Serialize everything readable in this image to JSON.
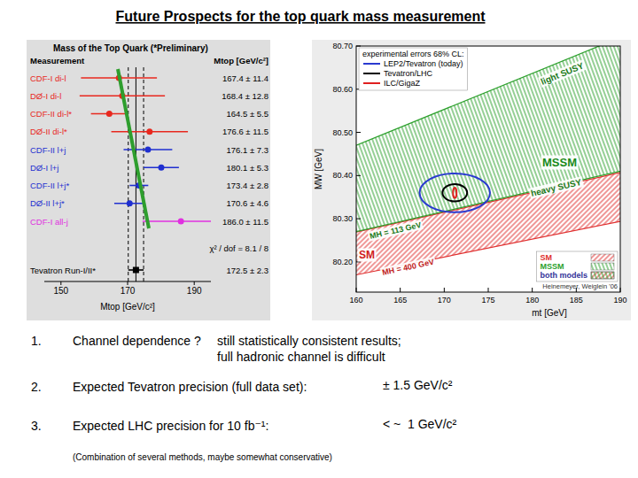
{
  "title": "Future Prospects for the top quark mass measurement",
  "chart_data": [
    {
      "type": "errorbar",
      "orientation": "horizontal",
      "title": "Mass of the Top Quark (*Preliminary)",
      "headers": [
        "Measurement",
        "Mtop [GeV/c²]"
      ],
      "categories": [
        "CDF-I di-l",
        "DØ-I di-l",
        "CDF-II di-l*",
        "DØ-II di-l*",
        "CDF-II l+j",
        "DØ-I l+j",
        "CDF-II l+j*",
        "DØ-II l+j*",
        "CDF-I all-j"
      ],
      "values": [
        167.4,
        168.4,
        164.5,
        176.6,
        176.1,
        180.1,
        173.4,
        170.6,
        186.0
      ],
      "errors": [
        11.4,
        12.8,
        5.5,
        11.5,
        7.3,
        5.3,
        2.8,
        4.6,
        11.5
      ],
      "value_labels": [
        "167.4 ± 11.4",
        "168.4 ± 12.8",
        "164.5 ± 5.5",
        "176.6 ± 11.5",
        "176.1 ± 7.3",
        "180.1 ± 5.3",
        "173.4 ± 2.8",
        "170.6 ± 4.6",
        "186.0 ± 11.5"
      ],
      "colors": [
        "#e8281e",
        "#e8281e",
        "#e8281e",
        "#e8281e",
        "#1f2fd0",
        "#1f2fd0",
        "#1f2fd0",
        "#1f2fd0",
        "#e030e0"
      ],
      "marker": "circle",
      "combined": {
        "label": "Tevatron Run-I/II*",
        "value": 172.5,
        "error": 2.3,
        "value_label": "172.5 ± 2.3",
        "color": "#000000",
        "marker": "square"
      },
      "annotations": [
        "χ² / dof = 8.1 / 8"
      ],
      "x_label": "Mtop [GeV/c²]",
      "xlim": [
        145,
        195
      ],
      "xticks": [
        150,
        170,
        190
      ]
    },
    {
      "type": "contour",
      "x_label": "mt [GeV]",
      "y_label": "MW [GeV]",
      "xlim": [
        160,
        190
      ],
      "xticks": [
        160,
        165,
        170,
        175,
        180,
        185,
        190
      ],
      "ylim": [
        80.13,
        80.7
      ],
      "yticks": [
        {
          "value": 80.2,
          "label": "80.20"
        },
        {
          "value": 80.3,
          "label": "80.30"
        },
        {
          "value": 80.4,
          "label": "80.40"
        },
        {
          "value": 80.5,
          "label": "80.50"
        },
        {
          "value": 80.6,
          "label": "80.60"
        },
        {
          "value": 80.7,
          "label": "80.70"
        }
      ],
      "legend": "bottom-right",
      "bands": [
        {
          "name": "SM",
          "color": "#e03030",
          "x": [
            160,
            190
          ],
          "upper": [
            80.269,
            80.407
          ],
          "lower": [
            80.17,
            80.294
          ]
        },
        {
          "name": "MSSM",
          "color": "#2ca02c",
          "x": [
            160,
            190
          ],
          "upper": [
            80.47,
            80.72
          ],
          "lower": [
            80.27,
            80.41
          ]
        }
      ],
      "overlap_name": "both models",
      "contours": {
        "title": "experimental errors 68% CL:",
        "legend": "top-left",
        "series": [
          {
            "name": "LEP2/Tevatron (today)",
            "color": "#2a3ad0",
            "x": 171.2,
            "y": 80.36,
            "dx": 4.0,
            "dy": 0.045
          },
          {
            "name": "Tevatron/LHC",
            "color": "#000000",
            "x": 171.2,
            "y": 80.36,
            "dx": 1.4,
            "dy": 0.02
          },
          {
            "name": "ILC/GigaZ",
            "color": "#e02020",
            "x": 171.2,
            "y": 80.36,
            "dx": 0.2,
            "dy": 0.012
          }
        ]
      },
      "annotations": [
        "light SUSY",
        "MSSM",
        "heavy SUSY",
        "MH = 113 GeV",
        "SM",
        "MH = 400 GeV"
      ],
      "source": "Heinemeyer, Weiglein '06"
    }
  ],
  "items": [
    {
      "number": "1.",
      "text": "Channel dependence ?",
      "detail": [
        "still statistically consistent results;",
        "full hadronic channel is difficult"
      ]
    },
    {
      "number": "2.",
      "text": "Expected Tevatron precision (full data set):",
      "value": "± 1.5 GeV/c²"
    },
    {
      "number": "3.",
      "text": "Expected LHC precision for 10 fb⁻¹:",
      "value": "< ~  1 GeV/c²",
      "note": "(Combination of several methods, maybe somewhat conservative)"
    }
  ]
}
